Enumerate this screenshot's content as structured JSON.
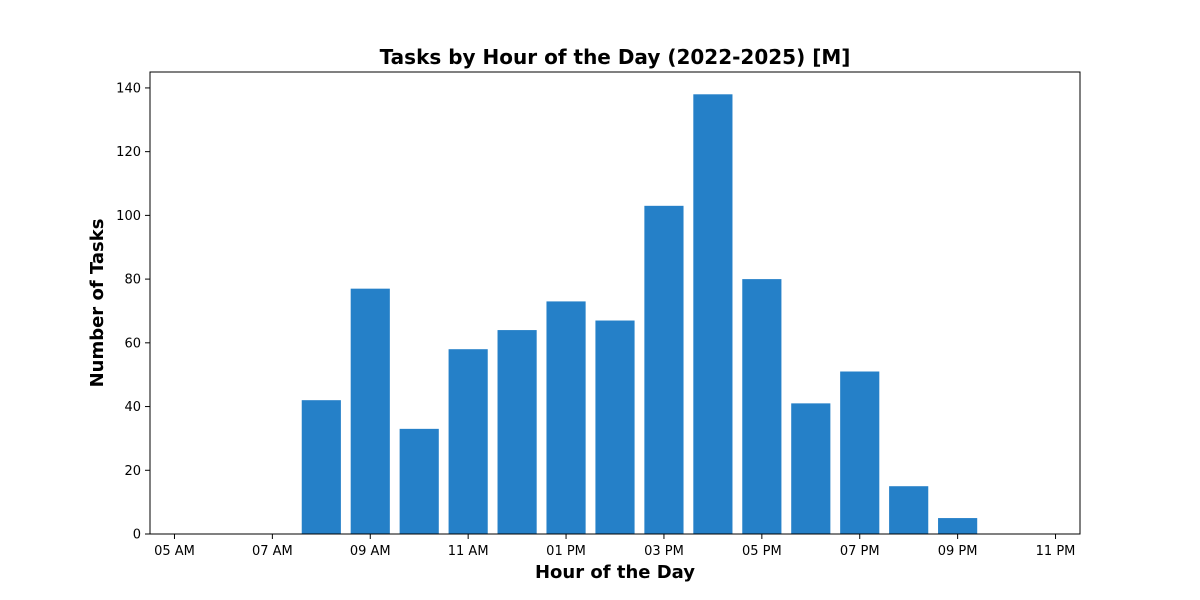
{
  "chart_data": {
    "type": "bar",
    "title": "Tasks by Hour of the Day (2022-2025) [M]",
    "xlabel": "Hour of the Day",
    "ylabel": "Number of Tasks",
    "x": [
      8,
      9,
      10,
      11,
      12,
      13,
      14,
      15,
      16,
      17,
      18,
      19,
      20,
      21
    ],
    "values": [
      42,
      77,
      33,
      58,
      64,
      73,
      67,
      103,
      138,
      80,
      41,
      51,
      15,
      5
    ],
    "xlim": [
      4.5,
      23.5
    ],
    "ylim": [
      0,
      145
    ],
    "x_ticks": [
      {
        "value": 5,
        "label": "05 AM"
      },
      {
        "value": 7,
        "label": "07 AM"
      },
      {
        "value": 9,
        "label": "09 AM"
      },
      {
        "value": 11,
        "label": "11 AM"
      },
      {
        "value": 13,
        "label": "01 PM"
      },
      {
        "value": 15,
        "label": "03 PM"
      },
      {
        "value": 17,
        "label": "05 PM"
      },
      {
        "value": 19,
        "label": "07 PM"
      },
      {
        "value": 21,
        "label": "09 PM"
      },
      {
        "value": 23,
        "label": "11 PM"
      }
    ],
    "y_ticks": [
      0,
      20,
      40,
      60,
      80,
      100,
      120,
      140
    ],
    "bar_color": "#2580c8",
    "grid": false,
    "legend": "none"
  }
}
